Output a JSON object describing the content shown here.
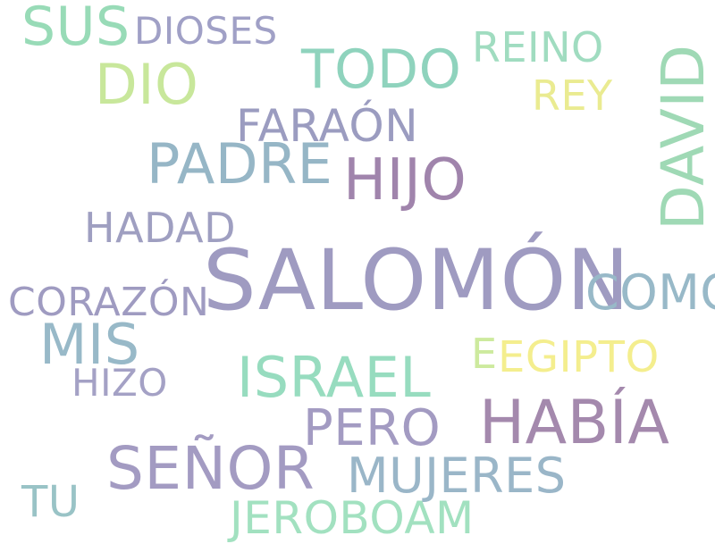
{
  "background": "#ffffff",
  "words": [
    {
      "text": "SALOMÓN",
      "color": "#9f9bc1"
    },
    {
      "text": "DAVID",
      "color": "#9fd9b5"
    },
    {
      "text": "HABÍA",
      "color": "#a489ad"
    },
    {
      "text": "SEÑOR",
      "color": "#a39bc2"
    },
    {
      "text": "PADRE",
      "color": "#96b6c6"
    },
    {
      "text": "ISRAEL",
      "color": "#97dcbf"
    },
    {
      "text": "HIJO",
      "color": "#a084ac"
    },
    {
      "text": "DIO",
      "color": "#c8e79b"
    },
    {
      "text": "TODO",
      "color": "#8fd3bd"
    },
    {
      "text": "MIS",
      "color": "#98b9c8"
    },
    {
      "text": "SUS",
      "color": "#98dbb7"
    },
    {
      "text": "COMO",
      "color": "#98b9c8"
    },
    {
      "text": "MUJERES",
      "color": "#9ab6c8"
    },
    {
      "text": "PERO",
      "color": "#a39bc2"
    },
    {
      "text": "FARAÓN",
      "color": "#9b9cc0"
    },
    {
      "text": "JEROBOAM",
      "color": "#a2e1c0"
    },
    {
      "text": "CORAZÓN",
      "color": "#9f9bc1"
    },
    {
      "text": "HADAD",
      "color": "#9f9fc1"
    },
    {
      "text": "EGIPTO",
      "color": "#f4ee8e"
    },
    {
      "text": "REINO",
      "color": "#a0dcc0"
    },
    {
      "text": "DIOSES",
      "color": "#a0a0c6"
    },
    {
      "text": "REY",
      "color": "#eaeb91"
    },
    {
      "text": "HIZO",
      "color": "#a4a1c5"
    },
    {
      "text": "TU",
      "color": "#99c3c6"
    },
    {
      "text": "E",
      "color": "#cdea9e"
    }
  ]
}
